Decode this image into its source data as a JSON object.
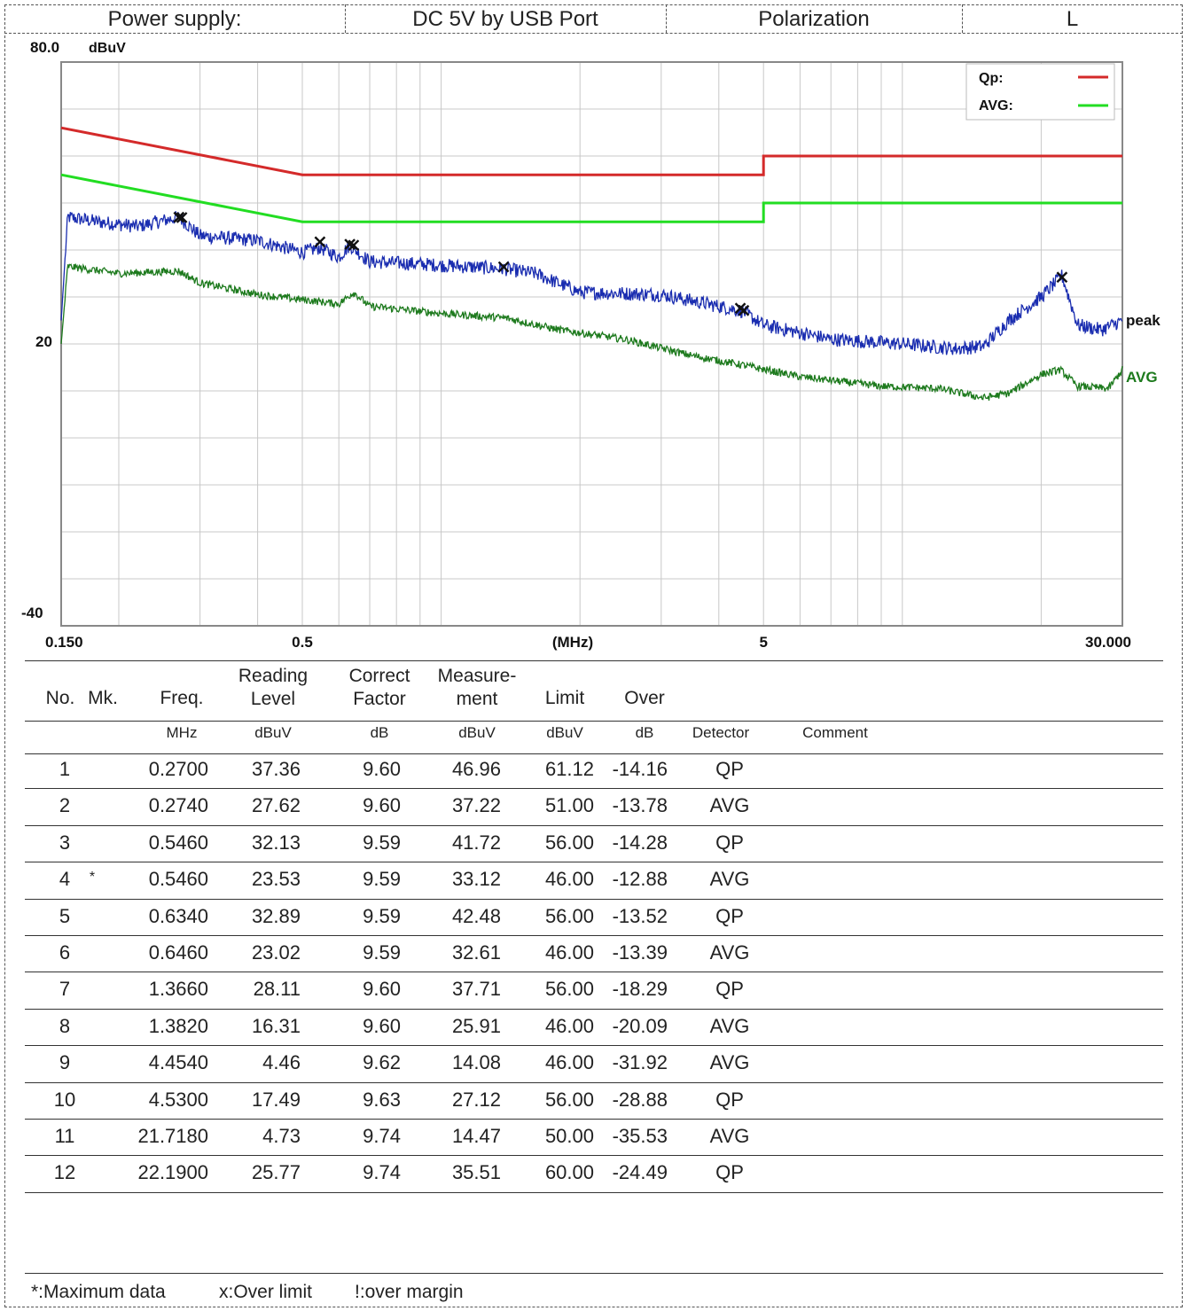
{
  "header": {
    "cells": [
      "Power supply:",
      "DC 5V by USB Port",
      "Polarization",
      "L"
    ]
  },
  "chart_data": {
    "type": "line",
    "x_scale": "log",
    "xlim": [
      0.15,
      30.0
    ],
    "ylim": [
      -40,
      80
    ],
    "y_unit": "dBuV",
    "x_unit": "(MHz)",
    "x_ticks": [
      "0.150",
      "0.5",
      "(MHz)",
      "5",
      "30.000"
    ],
    "y_ticks": [
      "80.0",
      "20",
      "-40"
    ],
    "legend": {
      "position": "top-right",
      "entries": [
        {
          "name": "Qp:",
          "color": "#d42a2a"
        },
        {
          "name": "AVG:",
          "color": "#22dd22"
        }
      ]
    },
    "trace_labels": [
      {
        "text": "peak",
        "color": "#111111"
      },
      {
        "text": "AVG",
        "color": "#1d7a1d"
      }
    ],
    "limits": [
      {
        "name": "Qp:",
        "color": "#d42a2a",
        "points": [
          [
            0.15,
            66
          ],
          [
            0.5,
            56
          ],
          [
            5,
            56
          ],
          [
            5,
            60
          ],
          [
            30,
            60
          ]
        ]
      },
      {
        "name": "AVG:",
        "color": "#22dd22",
        "points": [
          [
            0.15,
            56
          ],
          [
            0.5,
            46
          ],
          [
            5,
            46
          ],
          [
            5,
            50
          ],
          [
            30,
            50
          ]
        ]
      }
    ],
    "series": [
      {
        "color": "#1a2db0",
        "points": [
          [
            0.15,
            25
          ],
          [
            0.155,
            47
          ],
          [
            0.18,
            46
          ],
          [
            0.22,
            45
          ],
          [
            0.27,
            47
          ],
          [
            0.3,
            43
          ],
          [
            0.4,
            42
          ],
          [
            0.5,
            39.5
          ],
          [
            0.546,
            40.5
          ],
          [
            0.6,
            38.5
          ],
          [
            0.634,
            41
          ],
          [
            0.7,
            37.5
          ],
          [
            0.9,
            37
          ],
          [
            1.1,
            36.5
          ],
          [
            1.366,
            36
          ],
          [
            1.6,
            35
          ],
          [
            2.0,
            31
          ],
          [
            3.0,
            30.5
          ],
          [
            4.5,
            27
          ],
          [
            5.0,
            24
          ],
          [
            7.0,
            21
          ],
          [
            10.0,
            20
          ],
          [
            13.0,
            19
          ],
          [
            15.0,
            19.5
          ],
          [
            17.0,
            25
          ],
          [
            20.0,
            30
          ],
          [
            22.19,
            34.5
          ],
          [
            24.0,
            24
          ],
          [
            27.0,
            23
          ],
          [
            30.0,
            25
          ]
        ]
      },
      {
        "color": "#1d7a1d",
        "points": [
          [
            0.15,
            20
          ],
          [
            0.155,
            36.5
          ],
          [
            0.2,
            35
          ],
          [
            0.27,
            35.5
          ],
          [
            0.3,
            33
          ],
          [
            0.4,
            30.5
          ],
          [
            0.546,
            29
          ],
          [
            0.6,
            28.5
          ],
          [
            0.646,
            31
          ],
          [
            0.7,
            28
          ],
          [
            1.0,
            26.5
          ],
          [
            1.382,
            25.5
          ],
          [
            1.8,
            23
          ],
          [
            2.5,
            21
          ],
          [
            3.5,
            17.5
          ],
          [
            4.5,
            15.5
          ],
          [
            6.0,
            13
          ],
          [
            9.0,
            11
          ],
          [
            12.0,
            10.5
          ],
          [
            15.0,
            8.5
          ],
          [
            17.0,
            9.5
          ],
          [
            20.0,
            13.5
          ],
          [
            22.0,
            14.5
          ],
          [
            24.0,
            11
          ],
          [
            28.0,
            10.5
          ],
          [
            30.0,
            14.5
          ]
        ]
      }
    ],
    "markers": [
      {
        "x": 0.27,
        "y": 46.96
      },
      {
        "x": 0.274,
        "y": 46.9
      },
      {
        "x": 0.546,
        "y": 41.72
      },
      {
        "x": 0.634,
        "y": 41.2
      },
      {
        "x": 0.646,
        "y": 41.0
      },
      {
        "x": 1.366,
        "y": 36.4
      },
      {
        "x": 4.454,
        "y": 27.6
      },
      {
        "x": 4.53,
        "y": 27.12
      },
      {
        "x": 22.19,
        "y": 34.2
      }
    ]
  },
  "table": {
    "headers": [
      {
        "line1": "No.",
        "line2": "",
        "unit": ""
      },
      {
        "line1": "Mk.",
        "line2": "",
        "unit": ""
      },
      {
        "line1": "Freq.",
        "line2": "",
        "unit": "MHz"
      },
      {
        "line1": "Reading",
        "line2": "Level",
        "unit": "dBuV"
      },
      {
        "line1": "Correct",
        "line2": "Factor",
        "unit": "dB"
      },
      {
        "line1": "Measure-",
        "line2": "ment",
        "unit": "dBuV"
      },
      {
        "line1": "Limit",
        "line2": "",
        "unit": "dBuV"
      },
      {
        "line1": "Over",
        "line2": "",
        "unit": "dB"
      },
      {
        "line1": "",
        "line2": "",
        "unit": "Detector"
      },
      {
        "line1": "",
        "line2": "",
        "unit": "Comment"
      }
    ],
    "rows": [
      [
        "1",
        "",
        "0.2700",
        "37.36",
        "9.60",
        "46.96",
        "61.12",
        "-14.16",
        "QP",
        ""
      ],
      [
        "2",
        "",
        "0.2740",
        "27.62",
        "9.60",
        "37.22",
        "51.00",
        "-13.78",
        "AVG",
        ""
      ],
      [
        "3",
        "",
        "0.5460",
        "32.13",
        "9.59",
        "41.72",
        "56.00",
        "-14.28",
        "QP",
        ""
      ],
      [
        "4",
        "*",
        "0.5460",
        "23.53",
        "9.59",
        "33.12",
        "46.00",
        "-12.88",
        "AVG",
        ""
      ],
      [
        "5",
        "",
        "0.6340",
        "32.89",
        "9.59",
        "42.48",
        "56.00",
        "-13.52",
        "QP",
        ""
      ],
      [
        "6",
        "",
        "0.6460",
        "23.02",
        "9.59",
        "32.61",
        "46.00",
        "-13.39",
        "AVG",
        ""
      ],
      [
        "7",
        "",
        "1.3660",
        "28.11",
        "9.60",
        "37.71",
        "56.00",
        "-18.29",
        "QP",
        ""
      ],
      [
        "8",
        "",
        "1.3820",
        "16.31",
        "9.60",
        "25.91",
        "46.00",
        "-20.09",
        "AVG",
        ""
      ],
      [
        "9",
        "",
        "4.4540",
        "4.46",
        "9.62",
        "14.08",
        "46.00",
        "-31.92",
        "AVG",
        ""
      ],
      [
        "10",
        "",
        "4.5300",
        "17.49",
        "9.63",
        "27.12",
        "56.00",
        "-28.88",
        "QP",
        ""
      ],
      [
        "11",
        "",
        "21.7180",
        "4.73",
        "9.74",
        "14.47",
        "50.00",
        "-35.53",
        "AVG",
        ""
      ],
      [
        "12",
        "",
        "22.1900",
        "25.77",
        "9.74",
        "35.51",
        "60.00",
        "-24.49",
        "QP",
        ""
      ]
    ]
  },
  "footer": {
    "notes": [
      "*:Maximum data",
      "x:Over limit",
      "!:over margin"
    ]
  }
}
